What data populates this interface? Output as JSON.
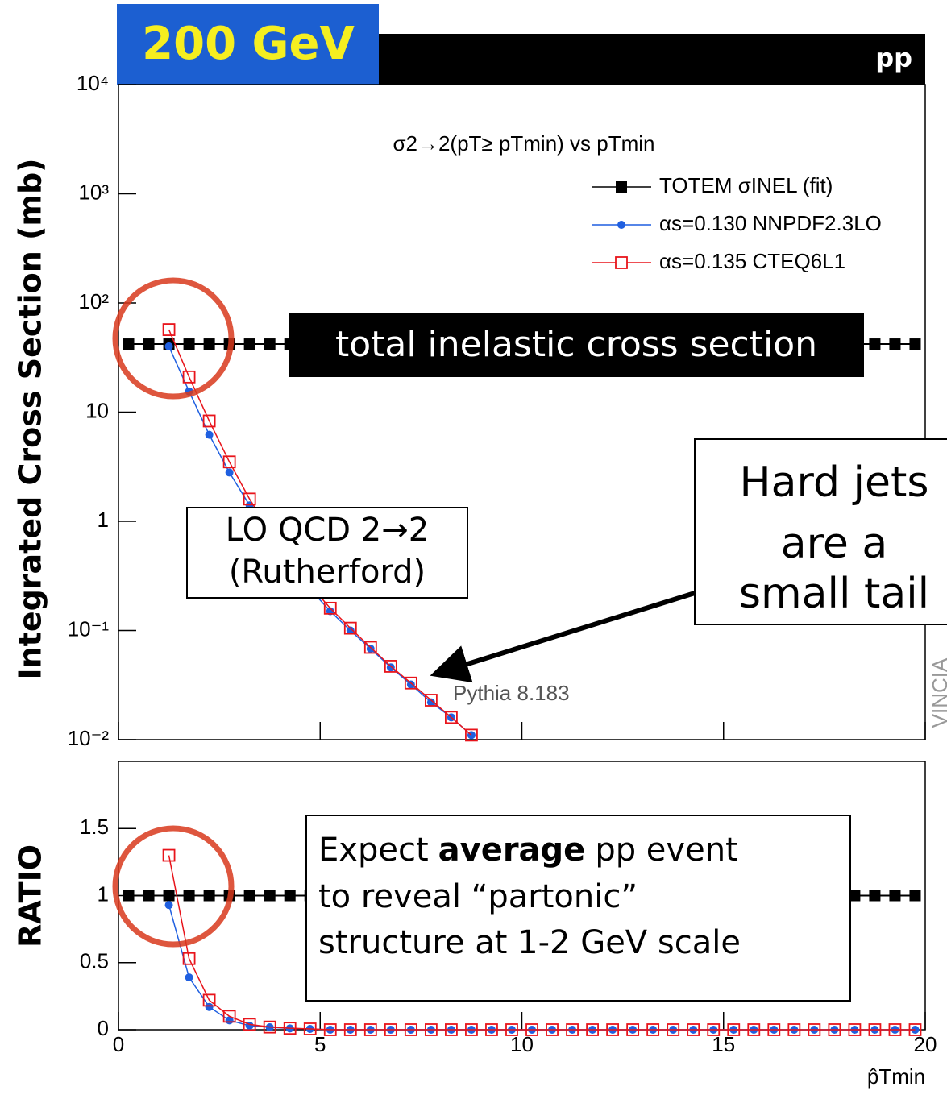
{
  "chart_data": [
    {
      "type": "line",
      "badge": "200 GeV",
      "beam": "pp",
      "title": "σ2→2(pT≥ pTmin) vs pTmin",
      "ylabel": "Integrated Cross Section (mb)",
      "log_y": true,
      "xlim": [
        0,
        20
      ],
      "ylim": [
        0.01,
        10000
      ],
      "yticks": [
        {
          "value": 0.01,
          "label": "10⁻²"
        },
        {
          "value": 0.1,
          "label": "10⁻¹"
        },
        1,
        10,
        {
          "value": 100,
          "label": "10²"
        },
        {
          "value": 1000,
          "label": "10³"
        },
        {
          "value": 10000,
          "label": "10⁴"
        }
      ],
      "series": [
        {
          "name": "TOTEM σINEL  (fit)",
          "color": "#000000",
          "marker": "square",
          "x": [
            0.25,
            0.75,
            1.25,
            1.75,
            2.25,
            2.75,
            3.25,
            3.75,
            4.25,
            4.75,
            5.25,
            5.75,
            6.25,
            6.75,
            7.25,
            7.75,
            8.25,
            8.75,
            9.25,
            9.75,
            10.25,
            10.75,
            11.25,
            11.75,
            12.25,
            12.75,
            13.25,
            13.75,
            14.25,
            14.75,
            15.25,
            15.75,
            16.25,
            16.75,
            17.25,
            17.75,
            18.25,
            18.75,
            19.25,
            19.75
          ],
          "values": [
            42,
            42,
            42,
            42,
            42,
            42,
            42,
            42,
            42,
            42,
            42,
            42,
            42,
            42,
            42,
            42,
            42,
            42,
            42,
            42,
            42,
            42,
            42,
            42,
            42,
            42,
            42,
            42,
            42,
            42,
            42,
            42,
            42,
            42,
            42,
            42,
            42,
            42,
            42,
            42
          ]
        },
        {
          "name": "αs=0.130 NNPDF2.3LO",
          "color": "#1f5fe0",
          "marker": "circle",
          "x": [
            1.25,
            1.75,
            2.25,
            2.75,
            3.25,
            3.75,
            4.25,
            4.75,
            5.25,
            5.75,
            6.25,
            6.75,
            7.25,
            7.75,
            8.25,
            8.75
          ],
          "values": [
            40,
            15.5,
            6.2,
            2.8,
            1.4,
            0.75,
            0.42,
            0.24,
            0.15,
            0.1,
            0.068,
            0.046,
            0.032,
            0.022,
            0.016,
            0.011
          ]
        },
        {
          "name": "αs=0.135 CTEQ6L1",
          "color": "#e8141b",
          "marker": "open-square",
          "x": [
            1.25,
            1.75,
            2.25,
            2.75,
            3.25,
            3.75,
            4.25,
            4.75,
            5.25,
            5.75,
            6.25,
            6.75,
            7.25,
            7.75,
            8.25,
            8.75
          ],
          "values": [
            57,
            21,
            8.3,
            3.5,
            1.6,
            0.82,
            0.45,
            0.26,
            0.16,
            0.105,
            0.07,
            0.047,
            0.033,
            0.023,
            0.016,
            0.011
          ]
        }
      ],
      "annotations": {
        "total": "total inelastic cross section",
        "hard": [
          "Hard jets",
          "are a",
          "small tail"
        ],
        "lo": [
          "LO QCD 2→2",
          "(Rutherford)"
        ],
        "generator": "Pythia 8.183",
        "watermark": "VINCIA"
      }
    },
    {
      "type": "line",
      "ylabel": "RATIO",
      "xlabel": "p̂Tmin",
      "xlim": [
        0,
        20
      ],
      "ylim": [
        0,
        2
      ],
      "xticks": [
        0,
        5,
        10,
        15,
        20
      ],
      "yticks": [
        0,
        0.5,
        1,
        1.5
      ],
      "series": [
        {
          "color": "#000000",
          "marker": "square",
          "x": [
            0.25,
            0.75,
            1.25,
            1.75,
            2.25,
            2.75,
            3.25,
            3.75,
            4.25,
            4.75,
            5.25,
            5.75,
            6.25,
            6.75,
            7.25,
            7.75,
            8.25,
            8.75,
            9.25,
            9.75,
            10.25,
            10.75,
            11.25,
            11.75,
            12.25,
            12.75,
            13.25,
            13.75,
            14.25,
            14.75,
            15.25,
            15.75,
            16.25,
            16.75,
            17.25,
            17.75,
            18.25,
            18.75,
            19.25,
            19.75
          ],
          "values": [
            1,
            1,
            1,
            1,
            1,
            1,
            1,
            1,
            1,
            1,
            1,
            1,
            1,
            1,
            1,
            1,
            1,
            1,
            1,
            1,
            1,
            1,
            1,
            1,
            1,
            1,
            1,
            1,
            1,
            1,
            1,
            1,
            1,
            1,
            1,
            1,
            1,
            1,
            1,
            1
          ]
        },
        {
          "color": "#1f5fe0",
          "marker": "circle",
          "x": [
            1.25,
            1.75,
            2.25,
            2.75,
            3.25,
            3.75,
            4.25,
            4.75,
            5.25,
            5.75,
            6.25,
            6.75,
            7.25,
            7.75,
            8.25,
            8.75,
            9.25,
            9.75,
            10.25,
            10.75,
            11.25,
            11.75,
            12.25,
            12.75,
            13.25,
            13.75,
            14.25,
            14.75,
            15.25,
            15.75,
            16.25,
            16.75,
            17.25,
            17.75,
            18.25,
            18.75,
            19.25,
            19.75
          ],
          "values": [
            0.93,
            0.39,
            0.17,
            0.07,
            0.03,
            0.018,
            0.01,
            0.006,
            0,
            0,
            0,
            0,
            0,
            0,
            0,
            0,
            0,
            0,
            0,
            0,
            0,
            0,
            0,
            0,
            0,
            0,
            0,
            0,
            0,
            0,
            0,
            0,
            0,
            0,
            0,
            0,
            0,
            0
          ]
        },
        {
          "color": "#e8141b",
          "marker": "open-square",
          "x": [
            1.25,
            1.75,
            2.25,
            2.75,
            3.25,
            3.75,
            4.25,
            4.75,
            5.25,
            5.75,
            6.25,
            6.75,
            7.25,
            7.75,
            8.25,
            8.75,
            9.25,
            9.75,
            10.25,
            10.75,
            11.25,
            11.75,
            12.25,
            12.75,
            13.25,
            13.75,
            14.25,
            14.75,
            15.25,
            15.75,
            16.25,
            16.75,
            17.25,
            17.75,
            18.25,
            18.75,
            19.25,
            19.75
          ],
          "values": [
            1.3,
            0.53,
            0.22,
            0.1,
            0.04,
            0.02,
            0.011,
            0.006,
            0,
            0,
            0,
            0,
            0,
            0,
            0,
            0,
            0,
            0,
            0,
            0,
            0,
            0,
            0,
            0,
            0,
            0,
            0,
            0,
            0,
            0,
            0,
            0,
            0,
            0,
            0,
            0,
            0,
            0
          ]
        }
      ],
      "annotations": {
        "note": [
          [
            "Expect",
            "average",
            "pp event"
          ],
          "to reveal “partonic”",
          "structure at 1-2 GeV scale"
        ]
      }
    }
  ]
}
